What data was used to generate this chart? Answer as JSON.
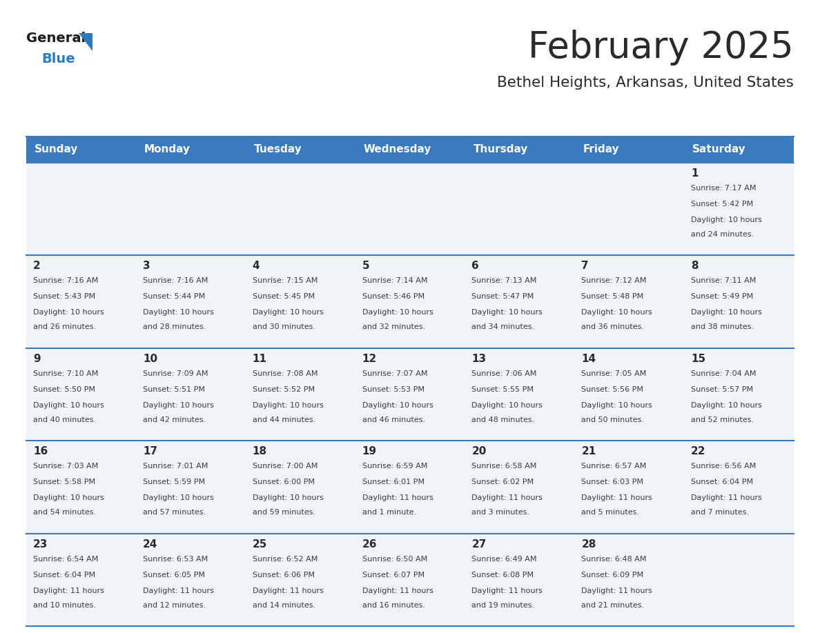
{
  "title": "February 2025",
  "subtitle": "Bethel Heights, Arkansas, United States",
  "header_bg": "#3a7abf",
  "header_text_color": "#ffffff",
  "cell_bg": "#f0f4f8",
  "row_separator_color": "#3a7abf",
  "day_headers": [
    "Sunday",
    "Monday",
    "Tuesday",
    "Wednesday",
    "Thursday",
    "Friday",
    "Saturday"
  ],
  "title_color": "#2a2a2a",
  "subtitle_color": "#2a2a2a",
  "day_num_color": "#2a2a2a",
  "cell_text_color": "#3a3a3a",
  "days": [
    {
      "day": 1,
      "col": 6,
      "row": 0,
      "sunrise": "7:17 AM",
      "sunset": "5:42 PM",
      "daylight_hours": 10,
      "daylight_minutes": 24
    },
    {
      "day": 2,
      "col": 0,
      "row": 1,
      "sunrise": "7:16 AM",
      "sunset": "5:43 PM",
      "daylight_hours": 10,
      "daylight_minutes": 26
    },
    {
      "day": 3,
      "col": 1,
      "row": 1,
      "sunrise": "7:16 AM",
      "sunset": "5:44 PM",
      "daylight_hours": 10,
      "daylight_minutes": 28
    },
    {
      "day": 4,
      "col": 2,
      "row": 1,
      "sunrise": "7:15 AM",
      "sunset": "5:45 PM",
      "daylight_hours": 10,
      "daylight_minutes": 30
    },
    {
      "day": 5,
      "col": 3,
      "row": 1,
      "sunrise": "7:14 AM",
      "sunset": "5:46 PM",
      "daylight_hours": 10,
      "daylight_minutes": 32
    },
    {
      "day": 6,
      "col": 4,
      "row": 1,
      "sunrise": "7:13 AM",
      "sunset": "5:47 PM",
      "daylight_hours": 10,
      "daylight_minutes": 34
    },
    {
      "day": 7,
      "col": 5,
      "row": 1,
      "sunrise": "7:12 AM",
      "sunset": "5:48 PM",
      "daylight_hours": 10,
      "daylight_minutes": 36
    },
    {
      "day": 8,
      "col": 6,
      "row": 1,
      "sunrise": "7:11 AM",
      "sunset": "5:49 PM",
      "daylight_hours": 10,
      "daylight_minutes": 38
    },
    {
      "day": 9,
      "col": 0,
      "row": 2,
      "sunrise": "7:10 AM",
      "sunset": "5:50 PM",
      "daylight_hours": 10,
      "daylight_minutes": 40
    },
    {
      "day": 10,
      "col": 1,
      "row": 2,
      "sunrise": "7:09 AM",
      "sunset": "5:51 PM",
      "daylight_hours": 10,
      "daylight_minutes": 42
    },
    {
      "day": 11,
      "col": 2,
      "row": 2,
      "sunrise": "7:08 AM",
      "sunset": "5:52 PM",
      "daylight_hours": 10,
      "daylight_minutes": 44
    },
    {
      "day": 12,
      "col": 3,
      "row": 2,
      "sunrise": "7:07 AM",
      "sunset": "5:53 PM",
      "daylight_hours": 10,
      "daylight_minutes": 46
    },
    {
      "day": 13,
      "col": 4,
      "row": 2,
      "sunrise": "7:06 AM",
      "sunset": "5:55 PM",
      "daylight_hours": 10,
      "daylight_minutes": 48
    },
    {
      "day": 14,
      "col": 5,
      "row": 2,
      "sunrise": "7:05 AM",
      "sunset": "5:56 PM",
      "daylight_hours": 10,
      "daylight_minutes": 50
    },
    {
      "day": 15,
      "col": 6,
      "row": 2,
      "sunrise": "7:04 AM",
      "sunset": "5:57 PM",
      "daylight_hours": 10,
      "daylight_minutes": 52
    },
    {
      "day": 16,
      "col": 0,
      "row": 3,
      "sunrise": "7:03 AM",
      "sunset": "5:58 PM",
      "daylight_hours": 10,
      "daylight_minutes": 54
    },
    {
      "day": 17,
      "col": 1,
      "row": 3,
      "sunrise": "7:01 AM",
      "sunset": "5:59 PM",
      "daylight_hours": 10,
      "daylight_minutes": 57
    },
    {
      "day": 18,
      "col": 2,
      "row": 3,
      "sunrise": "7:00 AM",
      "sunset": "6:00 PM",
      "daylight_hours": 10,
      "daylight_minutes": 59
    },
    {
      "day": 19,
      "col": 3,
      "row": 3,
      "sunrise": "6:59 AM",
      "sunset": "6:01 PM",
      "daylight_hours": 11,
      "daylight_minutes": 1
    },
    {
      "day": 20,
      "col": 4,
      "row": 3,
      "sunrise": "6:58 AM",
      "sunset": "6:02 PM",
      "daylight_hours": 11,
      "daylight_minutes": 3
    },
    {
      "day": 21,
      "col": 5,
      "row": 3,
      "sunrise": "6:57 AM",
      "sunset": "6:03 PM",
      "daylight_hours": 11,
      "daylight_minutes": 5
    },
    {
      "day": 22,
      "col": 6,
      "row": 3,
      "sunrise": "6:56 AM",
      "sunset": "6:04 PM",
      "daylight_hours": 11,
      "daylight_minutes": 7
    },
    {
      "day": 23,
      "col": 0,
      "row": 4,
      "sunrise": "6:54 AM",
      "sunset": "6:04 PM",
      "daylight_hours": 11,
      "daylight_minutes": 10
    },
    {
      "day": 24,
      "col": 1,
      "row": 4,
      "sunrise": "6:53 AM",
      "sunset": "6:05 PM",
      "daylight_hours": 11,
      "daylight_minutes": 12
    },
    {
      "day": 25,
      "col": 2,
      "row": 4,
      "sunrise": "6:52 AM",
      "sunset": "6:06 PM",
      "daylight_hours": 11,
      "daylight_minutes": 14
    },
    {
      "day": 26,
      "col": 3,
      "row": 4,
      "sunrise": "6:50 AM",
      "sunset": "6:07 PM",
      "daylight_hours": 11,
      "daylight_minutes": 16
    },
    {
      "day": 27,
      "col": 4,
      "row": 4,
      "sunrise": "6:49 AM",
      "sunset": "6:08 PM",
      "daylight_hours": 11,
      "daylight_minutes": 19
    },
    {
      "day": 28,
      "col": 5,
      "row": 4,
      "sunrise": "6:48 AM",
      "sunset": "6:09 PM",
      "daylight_hours": 11,
      "daylight_minutes": 21
    }
  ],
  "logo_color_general": "#1a1a1a",
  "logo_color_blue": "#2b7bbf",
  "logo_triangle_color": "#2b7bbf",
  "fig_width": 11.88,
  "fig_height": 9.18,
  "dpi": 100
}
